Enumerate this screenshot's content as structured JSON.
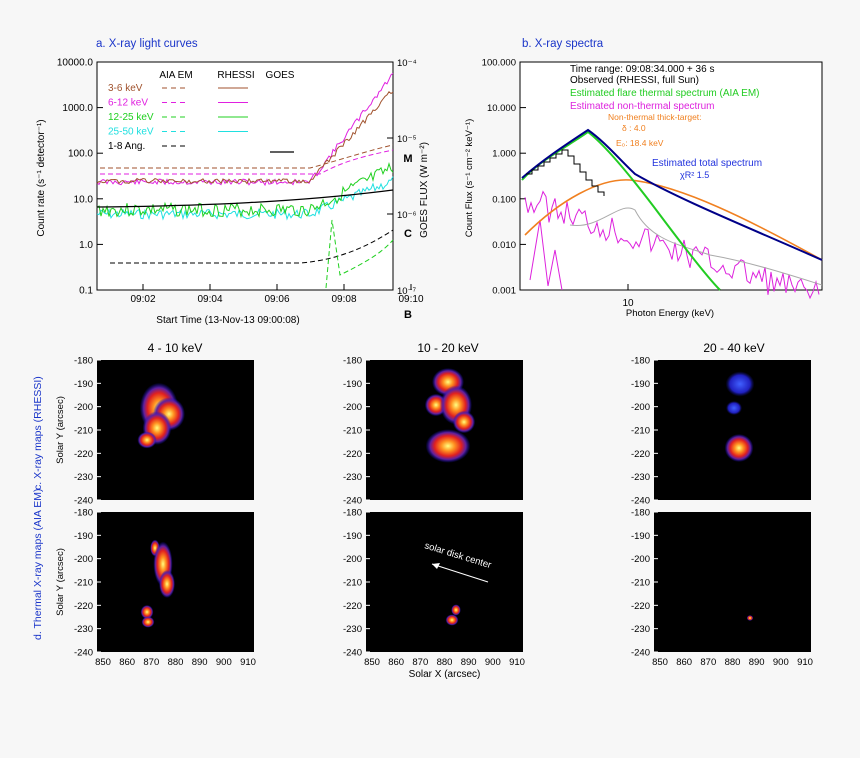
{
  "panel_a": {
    "title": "a. X-ray light curves",
    "ylabel_left": "Count rate (s⁻¹ detector⁻¹)",
    "ylabel_right": "GOES FLUX (W m⁻²)",
    "xlabel": "Start Time (13-Nov-13 09:00:08)",
    "left_ticks": [
      "10000.0",
      "1000.0",
      "100.0",
      "10.0",
      "1.0",
      "0.1"
    ],
    "right_ticks": [
      "10⁻⁴",
      "10⁻⁵",
      "10⁻⁶",
      "10⁻⁷"
    ],
    "x_ticks": [
      "09:02",
      "09:04",
      "09:06",
      "09:08",
      "09:10"
    ],
    "goes_classes": [
      "M",
      "C",
      "B"
    ],
    "legend_headers": [
      "AIA EM",
      "RHESSI",
      "GOES"
    ],
    "legend_rows": [
      {
        "label": "3-6 keV",
        "color": "#a0522d"
      },
      {
        "label": "6-12 keV",
        "color": "#e020e0"
      },
      {
        "label": "12-25 keV",
        "color": "#20d020"
      },
      {
        "label": "25-50 keV",
        "color": "#20e0e0"
      },
      {
        "label": "1-8 Ang.",
        "color": "#000000"
      }
    ]
  },
  "panel_b": {
    "title": "b. X-ray spectra",
    "ylabel": "Count Flux (s⁻¹ cm⁻² keV⁻¹)",
    "xlabel": "Photon Energy (keV)",
    "y_ticks": [
      "100.000",
      "10.000",
      "1.000",
      "0.100",
      "0.010",
      "0.001"
    ],
    "x_tick": "10",
    "time_range": "Time range: 09:08:34.000 + 36 s",
    "observed": "Observed (RHESSI, full Sun)",
    "est_thermal": "Estimated flare thermal spectrum (AIA EM)",
    "est_nonthermal": "Estimated non-thermal spectrum",
    "nt_title": "Non-thermal thick-target:",
    "delta": "δ : 4.0",
    "e0": "E₀: 18.4  keV",
    "est_total": "Estimated total spectrum",
    "chi": "χR²      1.5",
    "colors": {
      "thermal": "#22cc22",
      "nonthermal": "#dd22dd",
      "nt_text": "#f08020",
      "total": "#2233dd",
      "observed": "#000000"
    }
  },
  "maps": {
    "col_titles": [
      "4 - 10 keV",
      "10 - 20 keV",
      "20 - 40 keV"
    ],
    "row_c_label": "c. X-ray maps (RHESSI)",
    "row_d_label": "d. Thermal X-ray maps (AIA EM)",
    "ylabel": "Solar Y (arcsec)",
    "xlabel": "Solar X (arcsec)",
    "y_ticks": [
      "-180",
      "-190",
      "-200",
      "-210",
      "-220",
      "-230",
      "-240"
    ],
    "x_ticks": [
      "850",
      "860",
      "870",
      "880",
      "890",
      "900",
      "910"
    ],
    "disk_center": "solar disk center"
  }
}
